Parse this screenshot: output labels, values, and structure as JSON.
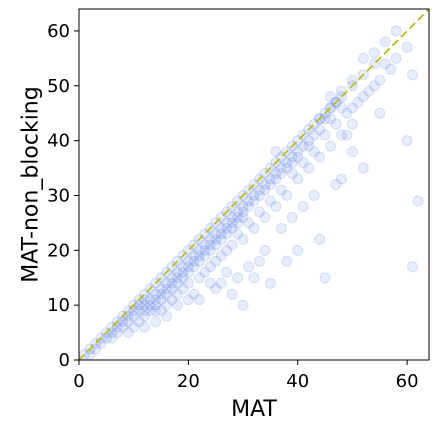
{
  "chart_data": {
    "type": "scatter",
    "title": "",
    "xlabel": "MAT",
    "ylabel": "MAT-non_blocking",
    "xlim": [
      0,
      64
    ],
    "ylim": [
      0,
      64
    ],
    "xticks": [
      0,
      20,
      40,
      60
    ],
    "yticks": [
      0,
      10,
      20,
      30,
      40,
      50,
      60
    ],
    "grid": false,
    "legend": "none",
    "colors": {
      "points": "#4169e1",
      "diagonal": "#bcbd22"
    },
    "reference_line": {
      "style": "dashed",
      "from": [
        0,
        0
      ],
      "to": [
        64,
        64
      ]
    },
    "series": [
      {
        "points": [
          [
            1,
            1
          ],
          [
            2,
            2
          ],
          [
            3,
            3
          ],
          [
            4,
            4
          ],
          [
            5,
            5
          ],
          [
            6,
            6
          ],
          [
            7,
            7
          ],
          [
            8,
            8
          ],
          [
            9,
            9
          ],
          [
            10,
            10
          ],
          [
            11,
            11
          ],
          [
            12,
            12
          ],
          [
            13,
            13
          ],
          [
            14,
            14
          ],
          [
            15,
            15
          ],
          [
            16,
            16
          ],
          [
            17,
            17
          ],
          [
            18,
            18
          ],
          [
            19,
            19
          ],
          [
            20,
            20
          ],
          [
            21,
            21
          ],
          [
            22,
            22
          ],
          [
            23,
            23
          ],
          [
            24,
            24
          ],
          [
            25,
            25
          ],
          [
            26,
            26
          ],
          [
            27,
            27
          ],
          [
            28,
            28
          ],
          [
            29,
            29
          ],
          [
            30,
            30
          ],
          [
            31,
            31
          ],
          [
            32,
            32
          ],
          [
            33,
            33
          ],
          [
            34,
            34
          ],
          [
            35,
            35
          ],
          [
            36,
            36
          ],
          [
            37,
            37
          ],
          [
            38,
            38
          ],
          [
            39,
            39
          ],
          [
            40,
            40
          ],
          [
            41,
            41
          ],
          [
            42,
            42
          ],
          [
            43,
            43
          ],
          [
            44,
            44
          ],
          [
            45,
            45
          ],
          [
            46,
            46
          ],
          [
            47,
            47
          ],
          [
            48,
            48
          ],
          [
            50,
            50
          ],
          [
            52,
            52
          ],
          [
            54,
            54
          ],
          [
            4,
            3
          ],
          [
            6,
            5
          ],
          [
            8,
            7
          ],
          [
            9,
            7
          ],
          [
            10,
            8
          ],
          [
            11,
            9
          ],
          [
            12,
            10
          ],
          [
            12,
            9
          ],
          [
            13,
            11
          ],
          [
            13,
            10
          ],
          [
            14,
            12
          ],
          [
            14,
            11
          ],
          [
            15,
            13
          ],
          [
            15,
            12
          ],
          [
            16,
            14
          ],
          [
            16,
            13
          ],
          [
            17,
            15
          ],
          [
            17,
            14
          ],
          [
            18,
            16
          ],
          [
            18,
            15
          ],
          [
            19,
            17
          ],
          [
            19,
            16
          ],
          [
            20,
            18
          ],
          [
            20,
            17
          ],
          [
            21,
            19
          ],
          [
            21,
            18
          ],
          [
            22,
            20
          ],
          [
            22,
            19
          ],
          [
            23,
            21
          ],
          [
            23,
            20
          ],
          [
            24,
            22
          ],
          [
            24,
            21
          ],
          [
            25,
            23
          ],
          [
            25,
            22
          ],
          [
            26,
            24
          ],
          [
            26,
            23
          ],
          [
            27,
            25
          ],
          [
            27,
            24
          ],
          [
            28,
            26
          ],
          [
            28,
            25
          ],
          [
            29,
            27
          ],
          [
            29,
            26
          ],
          [
            30,
            28
          ],
          [
            30,
            27
          ],
          [
            31,
            29
          ],
          [
            32,
            30
          ],
          [
            33,
            31
          ],
          [
            34,
            32
          ],
          [
            35,
            33
          ],
          [
            36,
            34
          ],
          [
            37,
            35
          ],
          [
            38,
            36
          ],
          [
            39,
            37
          ],
          [
            40,
            38
          ],
          [
            42,
            40
          ],
          [
            44,
            42
          ],
          [
            46,
            44
          ],
          [
            48,
            46
          ],
          [
            12,
            8
          ],
          [
            14,
            9
          ],
          [
            16,
            10
          ],
          [
            18,
            12
          ],
          [
            20,
            14
          ],
          [
            22,
            15
          ],
          [
            24,
            17
          ],
          [
            26,
            19
          ],
          [
            28,
            21
          ],
          [
            30,
            22
          ],
          [
            32,
            24
          ],
          [
            34,
            26
          ],
          [
            36,
            28
          ],
          [
            38,
            30
          ],
          [
            40,
            33
          ],
          [
            42,
            35
          ],
          [
            44,
            37
          ],
          [
            46,
            39
          ],
          [
            48,
            41
          ],
          [
            50,
            43
          ],
          [
            10,
            6
          ],
          [
            15,
            9
          ],
          [
            17,
            11
          ],
          [
            19,
            13
          ],
          [
            21,
            12
          ],
          [
            23,
            16
          ],
          [
            25,
            18
          ],
          [
            27,
            20
          ],
          [
            29,
            23
          ],
          [
            31,
            25
          ],
          [
            33,
            27
          ],
          [
            35,
            29
          ],
          [
            37,
            31
          ],
          [
            39,
            34
          ],
          [
            41,
            36
          ],
          [
            43,
            38
          ],
          [
            45,
            41
          ],
          [
            47,
            43
          ],
          [
            49,
            45
          ],
          [
            51,
            47
          ],
          [
            53,
            49
          ],
          [
            55,
            51
          ],
          [
            57,
            53
          ],
          [
            52,
            48
          ],
          [
            50,
            46
          ],
          [
            54,
            50
          ],
          [
            56,
            54
          ],
          [
            58,
            55
          ],
          [
            60,
            57
          ],
          [
            61,
            52
          ],
          [
            60,
            40
          ],
          [
            62,
            29
          ],
          [
            61,
            17
          ],
          [
            55,
            45
          ],
          [
            47,
            32
          ],
          [
            44,
            22
          ],
          [
            52,
            35
          ],
          [
            49,
            41
          ],
          [
            46,
            48
          ],
          [
            40,
            20
          ],
          [
            38,
            18
          ],
          [
            35,
            14
          ],
          [
            30,
            10
          ],
          [
            45,
            15
          ],
          [
            37,
            24
          ],
          [
            32,
            15
          ],
          [
            28,
            12
          ],
          [
            26,
            14
          ],
          [
            36,
            38
          ],
          [
            34,
            20
          ],
          [
            48,
            33
          ],
          [
            50,
            38
          ],
          [
            43,
            30
          ],
          [
            41,
            28
          ],
          [
            39,
            26
          ],
          [
            33,
            18
          ],
          [
            31,
            17
          ],
          [
            29,
            15
          ],
          [
            27,
            16
          ],
          [
            25,
            13
          ],
          [
            24,
            14
          ],
          [
            22,
            11
          ],
          [
            20,
            11
          ],
          [
            18,
            10
          ],
          [
            16,
            8
          ],
          [
            14,
            7
          ],
          [
            12,
            6
          ],
          [
            11,
            7
          ],
          [
            9,
            5
          ],
          [
            7,
            5
          ],
          [
            58,
            60
          ],
          [
            56,
            58
          ],
          [
            54,
            56
          ],
          [
            52,
            55
          ],
          [
            50,
            51
          ],
          [
            48,
            49
          ],
          [
            47,
            47
          ],
          [
            46,
            46
          ],
          [
            45,
            44
          ],
          [
            44,
            44
          ],
          [
            43,
            41
          ],
          [
            42,
            39
          ],
          [
            41,
            39
          ],
          [
            40,
            37
          ],
          [
            39,
            36
          ],
          [
            38,
            35
          ],
          [
            37,
            34
          ],
          [
            36,
            33
          ],
          [
            35,
            32
          ],
          [
            34,
            31
          ],
          [
            33,
            30
          ],
          [
            32,
            29
          ],
          [
            31,
            28
          ],
          [
            30,
            26
          ],
          [
            29,
            25
          ],
          [
            28,
            24
          ],
          [
            27,
            23
          ],
          [
            26,
            22
          ],
          [
            25,
            21
          ],
          [
            24,
            20
          ],
          [
            23,
            19
          ],
          [
            22,
            18
          ],
          [
            21,
            17
          ],
          [
            20,
            16
          ],
          [
            19,
            15
          ],
          [
            18,
            14
          ],
          [
            17,
            13
          ],
          [
            16,
            12
          ],
          [
            15,
            11
          ],
          [
            14,
            10
          ],
          [
            13,
            9
          ],
          [
            12,
            11
          ],
          [
            11,
            10
          ],
          [
            10,
            9
          ],
          [
            9,
            8
          ],
          [
            8,
            6
          ],
          [
            7,
            6
          ],
          [
            6,
            4
          ],
          [
            5,
            4
          ],
          [
            3,
            2
          ],
          [
            2,
            1
          ]
        ]
      }
    ]
  }
}
